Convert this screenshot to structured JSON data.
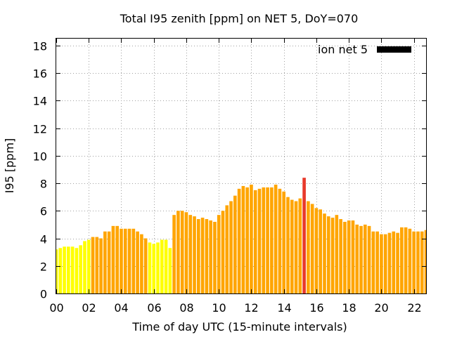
{
  "chart_data": {
    "type": "bar",
    "title": "Total I95 zenith [ppm] on NET 5, DoY=070",
    "xlabel": "Time of day UTC (15-minute intervals)",
    "ylabel": "I95 [ppm]",
    "xlim": [
      0,
      22.75
    ],
    "ylim": [
      0,
      18.5
    ],
    "xticks": [
      "00",
      "02",
      "04",
      "06",
      "08",
      "10",
      "12",
      "14",
      "16",
      "18",
      "20",
      "22"
    ],
    "yticks": [
      "0",
      "2",
      "4",
      "6",
      "8",
      "10",
      "12",
      "14",
      "16",
      "18"
    ],
    "grid": true,
    "legend": {
      "label": "ion net 5",
      "position": "top-right",
      "color": "#000000"
    },
    "bar_step_hours": 0.25,
    "colors": {
      "low": "#ffff00",
      "normal": "#ffa500",
      "high": "#e8392b"
    },
    "series": [
      {
        "values": [
          3.2,
          3.3,
          3.4,
          3.4,
          3.4,
          3.3,
          3.5,
          3.8,
          3.9,
          4.1,
          4.1,
          4.0,
          4.5,
          4.5,
          4.9,
          4.9,
          4.7,
          4.7,
          4.7,
          4.7,
          4.5,
          4.3,
          4.0,
          3.7,
          3.6,
          3.7,
          3.9,
          3.9,
          3.3,
          5.7,
          6.0,
          6.0,
          5.9,
          5.7,
          5.6,
          5.4,
          5.5,
          5.4,
          5.3,
          5.2,
          5.7,
          6.0,
          6.4,
          6.7,
          7.1,
          7.6,
          7.8,
          7.7,
          7.9,
          7.5,
          7.6,
          7.7,
          7.7,
          7.7,
          7.9,
          7.6,
          7.4,
          7.0,
          6.8,
          6.7,
          6.9,
          8.4,
          6.7,
          6.5,
          6.2,
          6.1,
          5.8,
          5.6,
          5.5,
          5.7,
          5.4,
          5.2,
          5.3,
          5.3,
          5.0,
          4.9,
          5.0,
          4.9,
          4.5,
          4.5,
          4.3,
          4.3,
          4.4,
          4.5,
          4.4,
          4.8,
          4.8,
          4.7,
          4.5,
          4.5,
          4.5,
          4.6
        ],
        "levels": [
          "low",
          "low",
          "low",
          "low",
          "low",
          "low",
          "low",
          "low",
          "low",
          "normal",
          "normal",
          "normal",
          "normal",
          "normal",
          "normal",
          "normal",
          "normal",
          "normal",
          "normal",
          "normal",
          "normal",
          "normal",
          "normal",
          "low",
          "low",
          "low",
          "low",
          "low",
          "low",
          "normal",
          "normal",
          "normal",
          "normal",
          "normal",
          "normal",
          "normal",
          "normal",
          "normal",
          "normal",
          "normal",
          "normal",
          "normal",
          "normal",
          "normal",
          "normal",
          "normal",
          "normal",
          "normal",
          "normal",
          "normal",
          "normal",
          "normal",
          "normal",
          "normal",
          "normal",
          "normal",
          "normal",
          "normal",
          "normal",
          "normal",
          "normal",
          "high",
          "normal",
          "normal",
          "normal",
          "normal",
          "normal",
          "normal",
          "normal",
          "normal",
          "normal",
          "normal",
          "normal",
          "normal",
          "normal",
          "normal",
          "normal",
          "normal",
          "normal",
          "normal",
          "normal",
          "normal",
          "normal",
          "normal",
          "normal",
          "normal",
          "normal",
          "normal",
          "normal",
          "normal",
          "normal",
          "normal"
        ]
      }
    ]
  }
}
